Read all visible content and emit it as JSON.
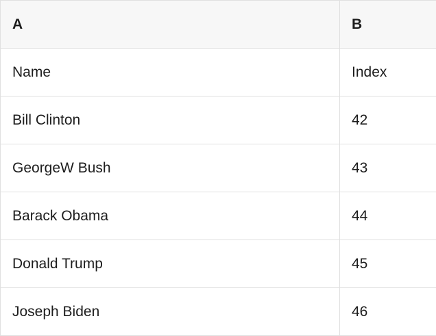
{
  "spreadsheet": {
    "column_letters": [
      "A",
      "B"
    ],
    "rows": [
      [
        "Name",
        "Index"
      ],
      [
        "Bill Clinton",
        "42"
      ],
      [
        "GeorgeW Bush",
        "43"
      ],
      [
        "Barack Obama",
        "44"
      ],
      [
        "Donald Trump",
        "45"
      ],
      [
        "Joseph Biden",
        "46"
      ]
    ]
  },
  "colors": {
    "header_bg": "#f7f7f7",
    "border": "#e0e0e0",
    "text": "#1d1d1d",
    "cell_bg": "#ffffff"
  }
}
